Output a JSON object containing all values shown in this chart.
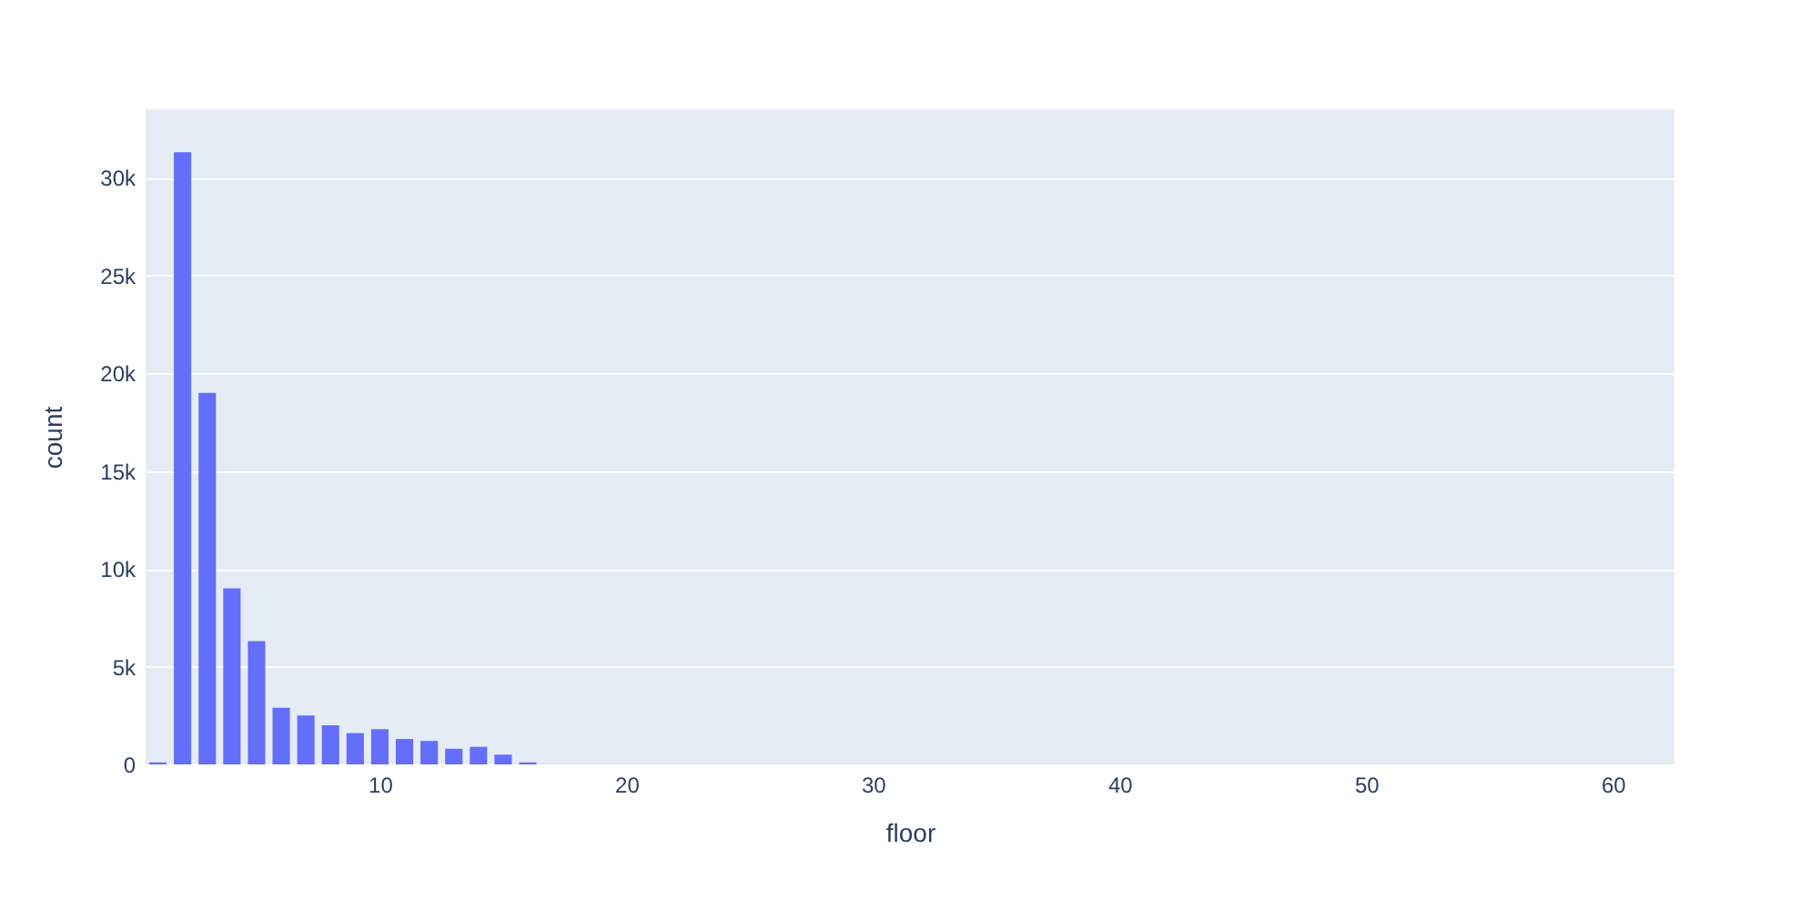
{
  "chart_data": {
    "type": "histogram",
    "xlabel": "floor",
    "ylabel": "count",
    "bins": [
      0.5,
      1.5,
      2.5,
      3.5,
      4.5,
      5.5,
      6.5,
      7.5,
      8.5,
      9.5,
      10.5,
      11.5,
      12.5,
      13.5,
      14.5,
      15.5,
      16.5,
      17.5,
      18.5,
      19.5,
      20.5,
      21.5,
      22.5,
      23.5,
      24.5,
      25.5,
      26.5,
      27.5,
      28.5,
      29.5,
      30.5,
      31.5,
      32.5,
      33.5,
      34.5,
      35.5,
      36.5,
      37.5,
      38.5,
      39.5,
      40.5,
      41.5,
      42.5,
      43.5,
      44.5,
      45.5,
      46.5,
      47.5,
      48.5,
      49.5,
      50.5,
      51.5,
      52.5,
      53.5,
      54.5,
      55.5,
      56.5,
      57.5,
      58.5,
      59.5,
      60.5,
      61.5,
      62.5
    ],
    "values": [
      100,
      31300,
      19000,
      9000,
      6300,
      2900,
      2500,
      2000,
      1600,
      1800,
      1300,
      1200,
      800,
      900,
      500,
      100,
      0,
      0,
      0,
      0,
      0,
      0,
      0,
      0,
      0,
      0,
      0,
      0,
      0,
      0,
      0,
      0,
      0,
      0,
      0,
      0,
      0,
      0,
      0,
      0,
      0,
      0,
      0,
      0,
      0,
      0,
      0,
      0,
      0,
      0,
      0,
      0,
      0,
      0,
      0,
      0,
      0,
      0,
      0,
      0,
      0,
      0
    ],
    "color": "#636efa",
    "xlim": [
      0.5,
      62.5
    ],
    "ylim": [
      0,
      33500
    ],
    "xticks": [
      10,
      20,
      30,
      40,
      50,
      60
    ],
    "yticks": [
      0,
      {
        "value": 5000,
        "label": "5k"
      },
      {
        "value": 10000,
        "label": "10k"
      },
      {
        "value": 15000,
        "label": "15k"
      },
      {
        "value": 20000,
        "label": "20k"
      },
      {
        "value": 25000,
        "label": "25k"
      },
      {
        "value": 30000,
        "label": "30k"
      }
    ],
    "grid": "y"
  }
}
